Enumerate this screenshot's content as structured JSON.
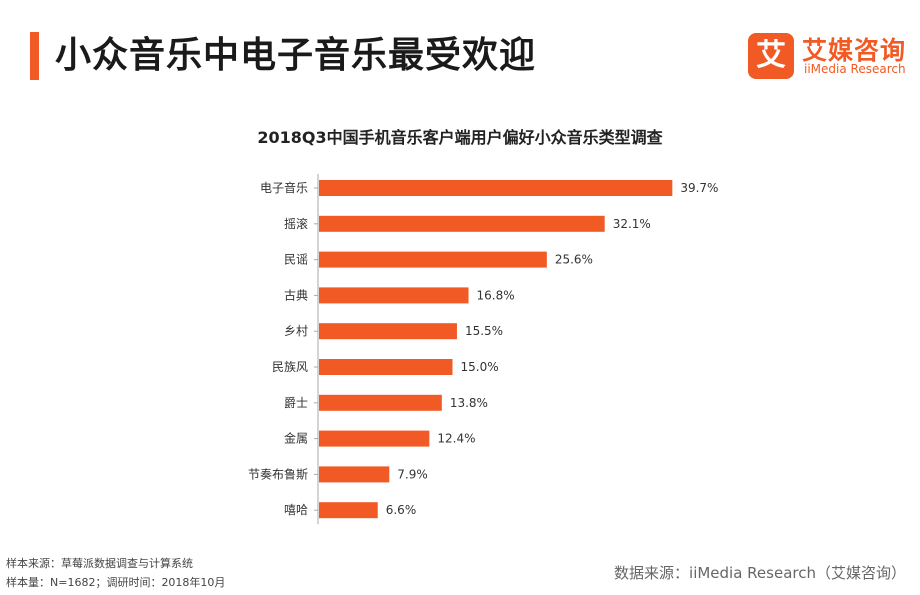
{
  "header": {
    "title": "小众音乐中电子音乐最受欢迎",
    "accent_color": "#f15a24"
  },
  "logo": {
    "mark_glyph": "艾",
    "name": "艾媒咨询",
    "subtitle": "iiMedia Research",
    "color": "#f15a24"
  },
  "chart_data": {
    "type": "bar",
    "orientation": "horizontal",
    "title": "2018Q3中国手机音乐客户端用户偏好小众音乐类型调查",
    "categories": [
      "电子音乐",
      "摇滚",
      "民谣",
      "古典",
      "乡村",
      "民族风",
      "爵士",
      "金属",
      "节奏布鲁斯",
      "嘻哈"
    ],
    "values": [
      39.7,
      32.1,
      25.6,
      16.8,
      15.5,
      15.0,
      13.8,
      12.4,
      7.9,
      6.6
    ],
    "value_labels": [
      "39.7%",
      "32.1%",
      "25.6%",
      "16.8%",
      "15.5%",
      "15.0%",
      "13.8%",
      "12.4%",
      "7.9%",
      "6.6%"
    ],
    "unit": "%",
    "bar_color": "#f15a24",
    "axis_color": "#aaaaaa",
    "xlim": [
      0,
      40
    ],
    "xlabel": "",
    "ylabel": "",
    "grid": false
  },
  "footer": {
    "sample_source": "样本来源：草莓派数据调查与计算系统",
    "sample_info": "样本量：N=1682；调研时间：2018年10月",
    "data_source": "数据来源：iiMedia Research（艾媒咨询）"
  }
}
